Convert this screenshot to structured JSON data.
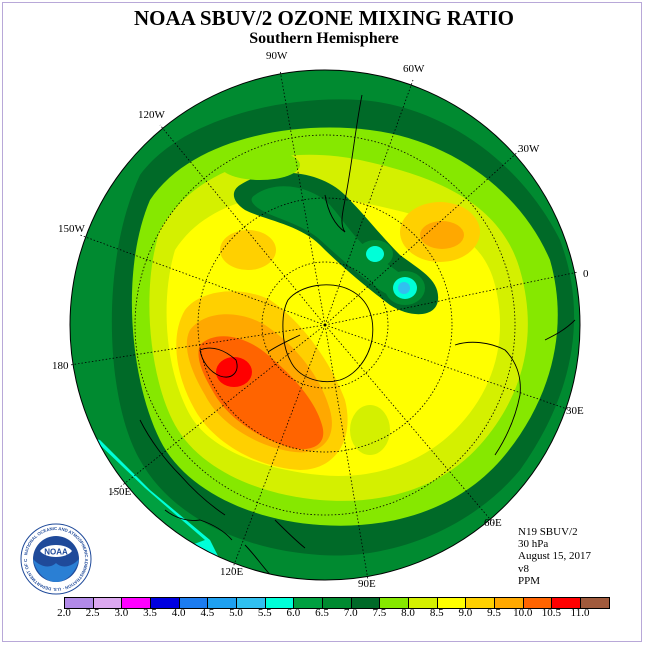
{
  "title": "NOAA SBUV/2 OZONE MIXING RATIO",
  "subtitle": "Southern Hemisphere",
  "longitude_labels": {
    "w90": "90W",
    "w60": "60W",
    "w120": "120W",
    "w30": "30W",
    "w150": "150W",
    "e0": "0",
    "e180": "180",
    "e30": "30E",
    "e150": "150E",
    "e60": "60E",
    "e120": "120E",
    "e90": "90E"
  },
  "info": {
    "satellite": "N19 SBUV/2",
    "level": "30 hPa",
    "date": "August 15, 2017",
    "version": "v8",
    "units": "PPM"
  },
  "logo": {
    "text": "NOAA",
    "ring_text": "NATIONAL OCEANIC AND ATMOSPHERIC ADMINISTRATION · U.S. DEPARTMENT OF COMMERCE"
  },
  "colorbar": {
    "ticks": [
      "2.0",
      "2.5",
      "3.0",
      "3.5",
      "4.0",
      "4.5",
      "5.0",
      "5.5",
      "6.0",
      "6.5",
      "7.0",
      "7.5",
      "8.0",
      "8.5",
      "9.0",
      "9.5",
      "10.0",
      "10.5",
      "11.0"
    ],
    "colors": [
      "#b28ae8",
      "#dca8f0",
      "#ff00ff",
      "#0000e0",
      "#1c7cf0",
      "#1ea0f0",
      "#30c0f0",
      "#00ffd8",
      "#00a040",
      "#008a30",
      "#006a28",
      "#86e800",
      "#d4f000",
      "#ffff00",
      "#ffd000",
      "#ffa800",
      "#ff6400",
      "#ff0000",
      "#a05a3c"
    ]
  }
}
